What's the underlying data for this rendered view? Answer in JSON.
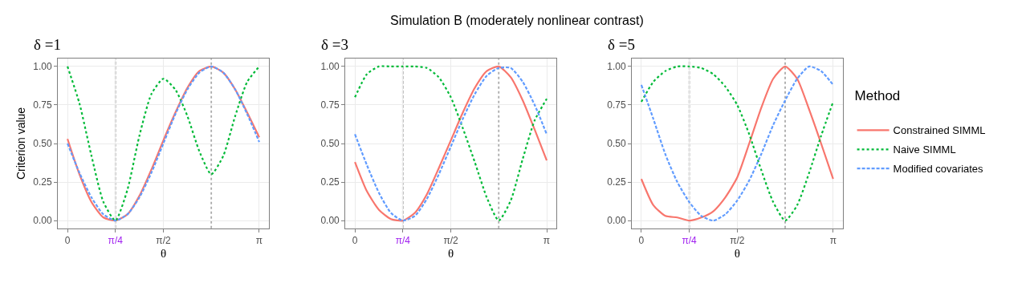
{
  "chart_data": [
    {
      "type": "line",
      "title": "δ =1",
      "xlabel": "θ",
      "ylabel": "Criterion value",
      "x": [
        0,
        0.196,
        0.393,
        0.589,
        0.785,
        0.982,
        1.178,
        1.374,
        1.571,
        1.767,
        1.963,
        2.16,
        2.356,
        2.553,
        2.749,
        2.945,
        3.142
      ],
      "series": [
        {
          "color": "#f8766d",
          "line_style": "solid",
          "values": [
            0.53,
            0.3,
            0.12,
            0.02,
            0.0,
            0.04,
            0.16,
            0.33,
            0.52,
            0.7,
            0.86,
            0.97,
            1.0,
            0.96,
            0.85,
            0.7,
            0.54
          ]
        },
        {
          "color": "#00ba38",
          "line_style": "dotted",
          "values": [
            1.0,
            0.76,
            0.42,
            0.12,
            0.0,
            0.2,
            0.55,
            0.82,
            0.92,
            0.85,
            0.68,
            0.45,
            0.3,
            0.42,
            0.68,
            0.9,
            1.0
          ]
        },
        {
          "color": "#619cff",
          "line_style": "dashed",
          "values": [
            0.5,
            0.31,
            0.15,
            0.04,
            0.0,
            0.04,
            0.15,
            0.31,
            0.5,
            0.69,
            0.85,
            0.96,
            1.0,
            0.96,
            0.85,
            0.69,
            0.51
          ]
        }
      ],
      "xlim": [
        -0.157,
        3.299
      ],
      "ylim": [
        -0.05,
        1.05
      ],
      "xticks": [
        0,
        {
          "value": 0.785,
          "label": "π/4"
        },
        {
          "value": 1.571,
          "label": "π/2"
        },
        {
          "value": 3.142,
          "label": "π"
        }
      ],
      "yticks": [
        {
          "value": 0,
          "label": "0.00"
        },
        {
          "value": 0.25,
          "label": "0.25"
        },
        {
          "value": 0.5,
          "label": "0.50"
        },
        {
          "value": 0.75,
          "label": "0.75"
        },
        {
          "value": 1,
          "label": "1.00"
        }
      ],
      "ref_lines": [
        {
          "axis": "x",
          "value": 0.785,
          "color": "#aaaaaa",
          "line_style": "dashed"
        },
        {
          "axis": "x",
          "value": 2.356,
          "color": "#aaaaaa",
          "line_style": "dotted"
        }
      ],
      "grid": true
    },
    {
      "type": "line",
      "title": "Simulation B (moderately nonlinear contrast)",
      "subtitle": "δ =3",
      "xlabel": "θ",
      "x": [
        0,
        0.196,
        0.393,
        0.589,
        0.785,
        0.982,
        1.178,
        1.374,
        1.571,
        1.767,
        1.963,
        2.16,
        2.356,
        2.553,
        2.749,
        2.945,
        3.142
      ],
      "series": [
        {
          "color": "#f8766d",
          "line_style": "solid",
          "values": [
            0.38,
            0.19,
            0.07,
            0.01,
            0.0,
            0.05,
            0.17,
            0.34,
            0.52,
            0.7,
            0.86,
            0.97,
            1.0,
            0.93,
            0.78,
            0.59,
            0.39
          ]
        },
        {
          "color": "#00ba38",
          "line_style": "dotted",
          "values": [
            0.8,
            0.95,
            1.0,
            1.0,
            1.0,
            1.0,
            0.99,
            0.93,
            0.8,
            0.6,
            0.38,
            0.15,
            0.0,
            0.13,
            0.4,
            0.65,
            0.79
          ]
        },
        {
          "color": "#619cff",
          "line_style": "dashed",
          "values": [
            0.56,
            0.36,
            0.18,
            0.05,
            0.0,
            0.03,
            0.14,
            0.3,
            0.48,
            0.66,
            0.82,
            0.94,
            0.99,
            0.99,
            0.9,
            0.75,
            0.56
          ]
        }
      ],
      "xlim": [
        -0.157,
        3.299
      ],
      "ylim": [
        -0.05,
        1.05
      ],
      "xticks": [
        0,
        {
          "value": 0.785,
          "label": "π/4"
        },
        {
          "value": 1.571,
          "label": "π/2"
        },
        {
          "value": 3.142,
          "label": "π"
        }
      ],
      "yticks": [
        {
          "value": 0,
          "label": "0.00"
        },
        {
          "value": 0.25,
          "label": "0.25"
        },
        {
          "value": 0.5,
          "label": "0.50"
        },
        {
          "value": 0.75,
          "label": "0.75"
        },
        {
          "value": 1,
          "label": "1.00"
        }
      ],
      "ref_lines": [
        {
          "axis": "x",
          "value": 0.785,
          "color": "#aaaaaa",
          "line_style": "dashed"
        },
        {
          "axis": "x",
          "value": 2.356,
          "color": "#aaaaaa",
          "line_style": "dotted"
        }
      ],
      "grid": true
    },
    {
      "type": "line",
      "title": "δ =5",
      "xlabel": "θ",
      "legend_title": "Method",
      "x": [
        0,
        0.196,
        0.393,
        0.589,
        0.785,
        0.982,
        1.178,
        1.374,
        1.571,
        1.767,
        1.963,
        2.16,
        2.356,
        2.553,
        2.749,
        2.945,
        3.142
      ],
      "series": [
        {
          "name": "Constrained SIMML",
          "color": "#f8766d",
          "line_style": "solid",
          "values": [
            0.27,
            0.1,
            0.03,
            0.02,
            0.0,
            0.02,
            0.06,
            0.15,
            0.28,
            0.5,
            0.73,
            0.92,
            1.0,
            0.92,
            0.72,
            0.5,
            0.27
          ]
        },
        {
          "name": "Naive SIMML",
          "color": "#00ba38",
          "line_style": "dotted",
          "values": [
            0.77,
            0.9,
            0.97,
            1.0,
            1.0,
            0.99,
            0.95,
            0.87,
            0.75,
            0.56,
            0.33,
            0.12,
            0.0,
            0.1,
            0.31,
            0.55,
            0.77
          ]
        },
        {
          "name": "Modified covariates",
          "color": "#619cff",
          "line_style": "dashed",
          "values": [
            0.88,
            0.66,
            0.43,
            0.25,
            0.12,
            0.03,
            0.0,
            0.04,
            0.13,
            0.26,
            0.43,
            0.62,
            0.78,
            0.92,
            1.0,
            0.97,
            0.88
          ]
        }
      ],
      "xlim": [
        -0.157,
        3.299
      ],
      "ylim": [
        -0.05,
        1.05
      ],
      "xticks": [
        0,
        {
          "value": 0.785,
          "label": "π/4"
        },
        {
          "value": 1.571,
          "label": "π/2"
        },
        {
          "value": 3.142,
          "label": "π"
        }
      ],
      "yticks": [
        {
          "value": 0,
          "label": "0.00"
        },
        {
          "value": 0.25,
          "label": "0.25"
        },
        {
          "value": 0.5,
          "label": "0.50"
        },
        {
          "value": 0.75,
          "label": "0.75"
        },
        {
          "value": 1,
          "label": "1.00"
        }
      ],
      "ref_lines": [
        {
          "axis": "x",
          "value": 0.785,
          "color": "#aaaaaa",
          "line_style": "dashed"
        },
        {
          "axis": "x",
          "value": 2.356,
          "color": "#aaaaaa",
          "line_style": "dotted"
        }
      ],
      "grid": true,
      "legend": "right"
    }
  ]
}
